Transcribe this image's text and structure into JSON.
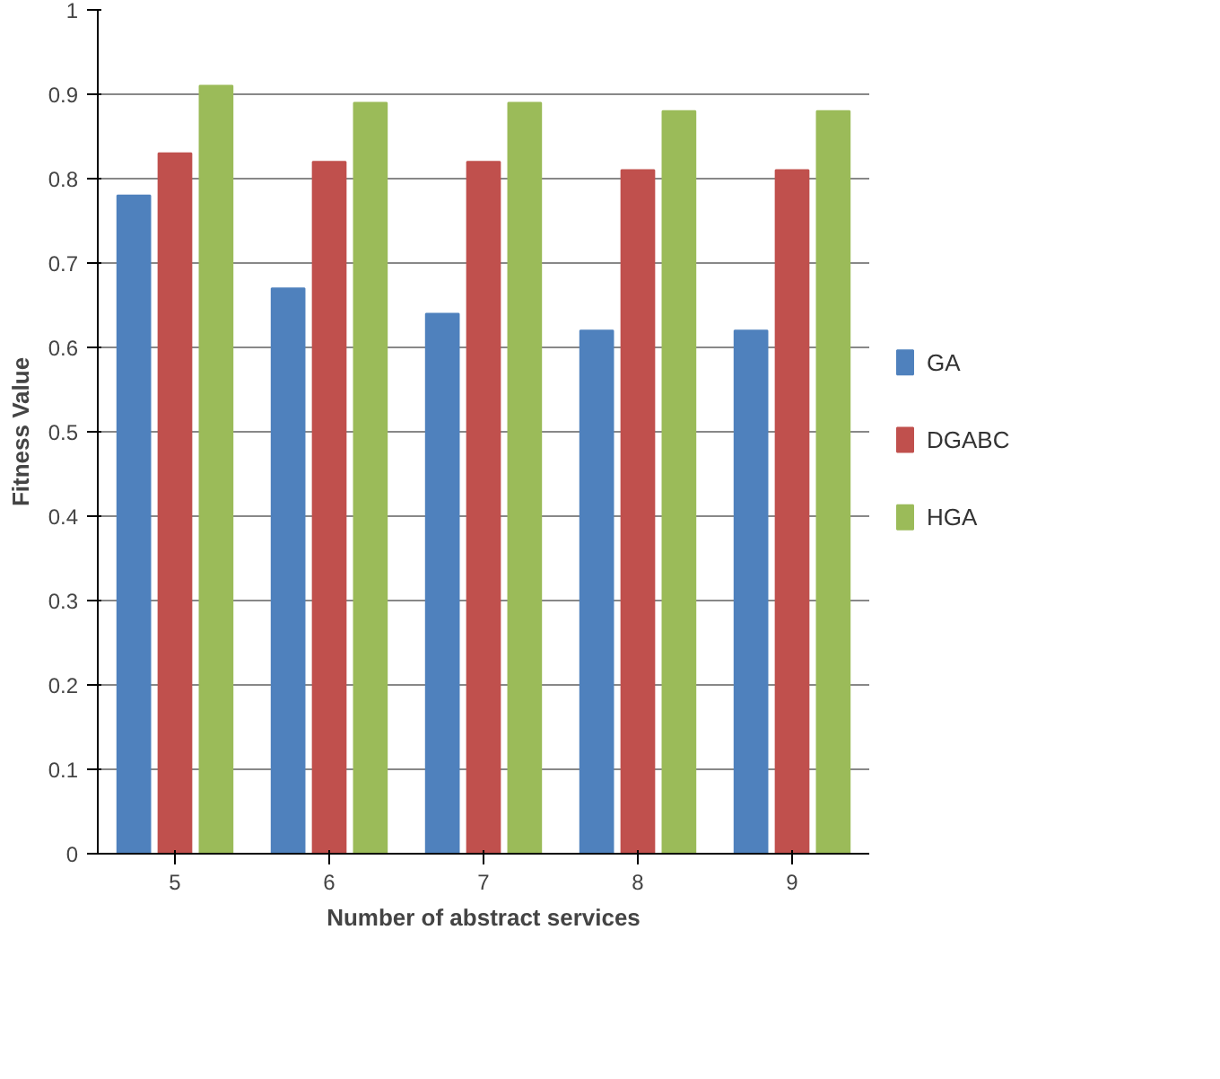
{
  "chart_data": {
    "type": "bar",
    "xlabel": "Number of abstract services",
    "ylabel": "Fitness Value",
    "categories": [
      "5",
      "6",
      "7",
      "8",
      "9"
    ],
    "series": [
      {
        "name": "GA",
        "color": "#4f81bd",
        "values": [
          0.78,
          0.67,
          0.64,
          0.62,
          0.62
        ]
      },
      {
        "name": "DGABC",
        "color": "#c0504d",
        "values": [
          0.83,
          0.82,
          0.82,
          0.81,
          0.81
        ]
      },
      {
        "name": "HGA",
        "color": "#9bbb59",
        "values": [
          0.91,
          0.89,
          0.89,
          0.88,
          0.88
        ]
      }
    ],
    "ylim": [
      0,
      1
    ],
    "yticks": [
      0,
      0.1,
      0.2,
      0.3,
      0.4,
      0.5,
      0.6,
      0.7,
      0.8,
      0.9,
      1
    ],
    "grid": "y",
    "legend": "right"
  }
}
